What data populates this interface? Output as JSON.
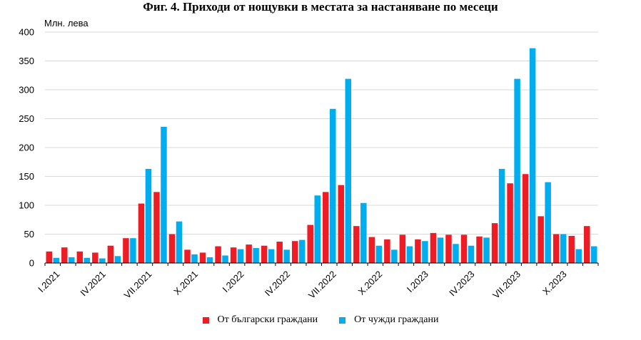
{
  "chart_data": {
    "type": "bar",
    "title": "Фиг. 4. Приходи от нощувки в местата за настаняване по месеци",
    "ylabel": "Млн. лева",
    "xlabel": "",
    "ylim": [
      0,
      400
    ],
    "yticks": [
      0,
      50,
      100,
      150,
      200,
      250,
      300,
      350,
      400
    ],
    "grid": true,
    "legend_position": "bottom",
    "categories": [
      "I.2021",
      "II.2021",
      "III.2021",
      "IV.2021",
      "V.2021",
      "VI.2021",
      "VII.2021",
      "VIII.2021",
      "IX.2021",
      "X.2021",
      "XI.2021",
      "XII.2021",
      "I.2022",
      "II.2022",
      "III.2022",
      "IV.2022",
      "V.2022",
      "VI.2022",
      "VII.2022",
      "VIII.2022",
      "IX.2022",
      "X.2022",
      "XI.2022",
      "XII.2022",
      "I.2023",
      "II.2023",
      "III.2023",
      "IV.2023",
      "V.2023",
      "VI.2023",
      "VII.2023",
      "VIII.2023",
      "IX.2023",
      "X.2023",
      "XI.2023",
      "XII.2023"
    ],
    "tick_labels": [
      "I.2021",
      "IV.2021",
      "VII.2021",
      "X.2021",
      "I.2022",
      "IV.2022",
      "VII.2022",
      "X.2022",
      "I.2023",
      "IV.2023",
      "VII.2023",
      "X.2023"
    ],
    "series": [
      {
        "name": "От български граждани",
        "color": "#ee1c25",
        "values": [
          20,
          27,
          20,
          18,
          30,
          43,
          103,
          123,
          50,
          23,
          18,
          29,
          27,
          32,
          30,
          37,
          38,
          66,
          123,
          135,
          64,
          45,
          41,
          49,
          41,
          52,
          49,
          49,
          46,
          69,
          138,
          154,
          81,
          50,
          47,
          64
        ]
      },
      {
        "name": "От чужди граждани",
        "color": "#00aeef",
        "values": [
          9,
          10,
          9,
          8,
          12,
          43,
          163,
          236,
          72,
          15,
          10,
          13,
          24,
          26,
          24,
          23,
          40,
          117,
          267,
          319,
          104,
          30,
          23,
          29,
          38,
          44,
          33,
          30,
          44,
          163,
          319,
          372,
          140,
          50,
          24,
          29
        ]
      }
    ]
  }
}
